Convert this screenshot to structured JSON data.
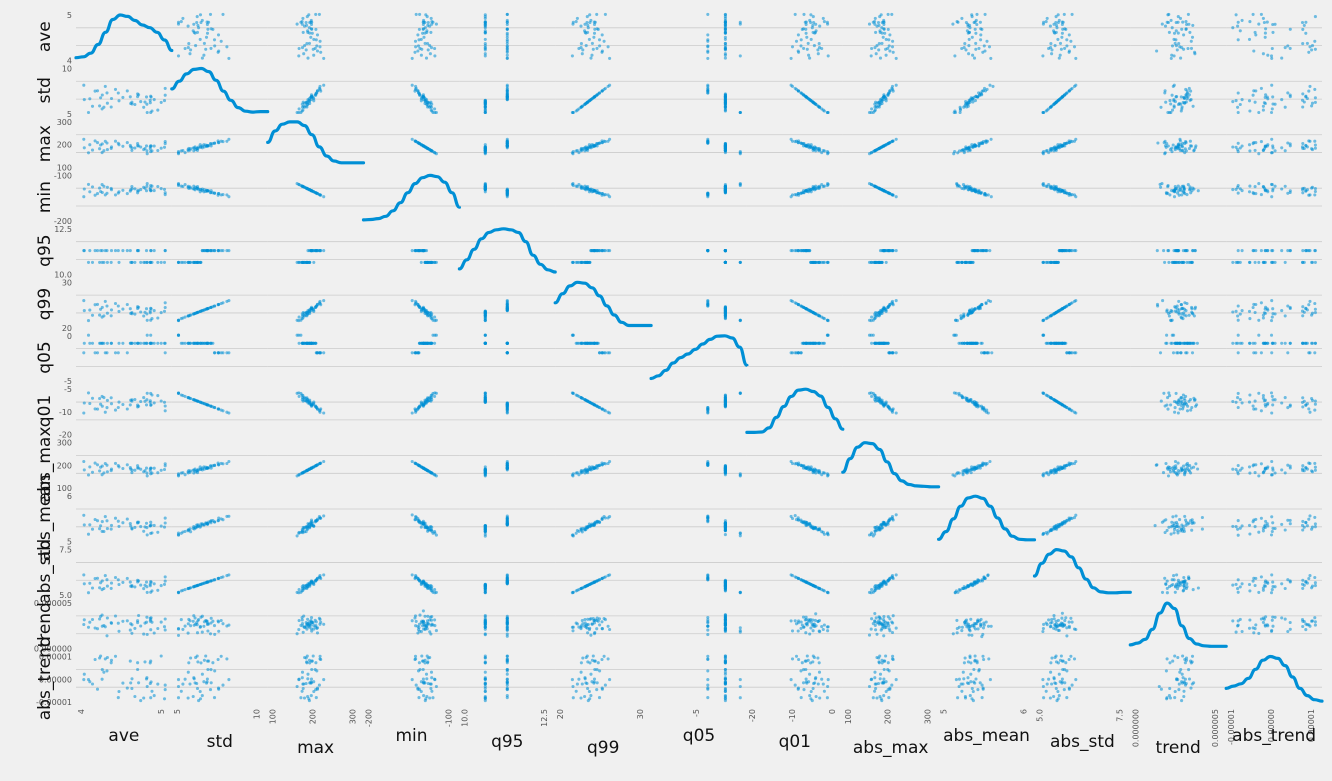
{
  "chart_data": {
    "type": "scatter",
    "variables": [
      "ave",
      "std",
      "max",
      "min",
      "q95",
      "q99",
      "q05",
      "q01",
      "abs_max",
      "abs_mean",
      "abs_std",
      "trend",
      "abs_trend"
    ],
    "ranges": [
      [
        4,
        5
      ],
      [
        4.5,
        10.5
      ],
      [
        0,
        320
      ],
      [
        -260,
        -30
      ],
      [
        9.5,
        13.2
      ],
      [
        13,
        32
      ],
      [
        -6.5,
        0.3
      ],
      [
        -22,
        -3
      ],
      [
        0,
        330
      ],
      [
        4.3,
        6.7
      ],
      [
        3.5,
        9
      ],
      [
        -2e-05,
        0.00011
      ],
      [
        -1.3e-05,
        1.3e-05
      ]
    ],
    "diag_kde": [
      [
        0.06,
        0.08,
        0.16,
        0.35,
        0.62,
        0.9,
        1,
        0.97,
        0.88,
        0.78,
        0.72,
        0.62,
        0.45,
        0.22
      ],
      [
        0.55,
        0.72,
        0.88,
        0.98,
        1,
        0.93,
        0.74,
        0.5,
        0.3,
        0.14,
        0.06,
        0.04,
        0.05,
        0.05
      ],
      [
        0.55,
        0.8,
        0.95,
        1,
        1,
        0.92,
        0.72,
        0.45,
        0.25,
        0.14,
        0.1,
        0.1,
        0.1,
        0.1
      ],
      [
        0.02,
        0.03,
        0.05,
        0.1,
        0.22,
        0.4,
        0.62,
        0.82,
        0.95,
        1,
        0.97,
        0.85,
        0.62,
        0.3
      ],
      [
        0.12,
        0.32,
        0.55,
        0.78,
        0.92,
        0.98,
        1,
        0.98,
        0.92,
        0.72,
        0.42,
        0.22,
        0.1,
        0.05
      ],
      [
        0.55,
        0.75,
        0.92,
        1,
        0.98,
        0.88,
        0.7,
        0.48,
        0.28,
        0.12,
        0.05,
        0.05,
        0.05,
        0.05
      ],
      [
        0.06,
        0.12,
        0.24,
        0.4,
        0.52,
        0.6,
        0.7,
        0.82,
        0.92,
        0.99,
        1,
        0.95,
        0.75,
        0.35
      ],
      [
        0.05,
        0.05,
        0.06,
        0.15,
        0.38,
        0.62,
        0.84,
        0.98,
        1,
        0.95,
        0.85,
        0.6,
        0.35,
        0.12
      ],
      [
        0.35,
        0.65,
        0.9,
        1,
        0.98,
        0.85,
        0.58,
        0.32,
        0.16,
        0.08,
        0.05,
        0.04,
        0.03,
        0.03
      ],
      [
        0.05,
        0.22,
        0.5,
        0.78,
        0.96,
        1,
        0.95,
        0.78,
        0.52,
        0.28,
        0.12,
        0.05,
        0.04,
        0.04
      ],
      [
        0.42,
        0.7,
        0.9,
        1,
        0.97,
        0.84,
        0.6,
        0.35,
        0.16,
        0.07,
        0.05,
        0.05,
        0.06,
        0.06
      ],
      [
        0.08,
        0.12,
        0.2,
        0.42,
        0.78,
        1,
        0.88,
        0.5,
        0.22,
        0.1,
        0.06,
        0.05,
        0.05,
        0.05
      ],
      [
        0.3,
        0.35,
        0.4,
        0.52,
        0.72,
        0.92,
        1,
        0.96,
        0.8,
        0.55,
        0.3,
        0.14,
        0.05,
        0.02
      ]
    ],
    "x_ticks": [
      [
        "4",
        "5"
      ],
      [
        "5",
        "10"
      ],
      [
        "100",
        "200",
        "300"
      ],
      [
        "-200",
        "-100"
      ],
      [
        "10.0",
        "12.5"
      ],
      [
        "20",
        "30"
      ],
      [
        "-5"
      ],
      [
        "-20",
        "-10",
        "0"
      ],
      [
        "100",
        "200",
        "300"
      ],
      [
        "5",
        "6"
      ],
      [
        "5.0",
        "7.5"
      ],
      [
        "0.000000",
        "0.000005"
      ],
      [
        "-0.00001",
        "0.00000",
        "0.00001"
      ]
    ],
    "y_ticks": [
      [
        "4",
        "5"
      ],
      [
        "5",
        "10"
      ],
      [
        "100",
        "200",
        "300"
      ],
      [
        "-200",
        "-100"
      ],
      [
        "10.0",
        "12.5"
      ],
      [
        "20",
        "30"
      ],
      [
        "-5",
        "0"
      ],
      [
        "-20",
        "-10",
        "-5"
      ],
      [
        "100",
        "200",
        "300"
      ],
      [
        "5",
        "6"
      ],
      [
        "5.0",
        "7.5"
      ],
      [
        "0.000000",
        "0.000005"
      ],
      [
        "-0.00001",
        "0.00000",
        "0.00001"
      ]
    ],
    "grid": true,
    "color": "#008fd5"
  }
}
